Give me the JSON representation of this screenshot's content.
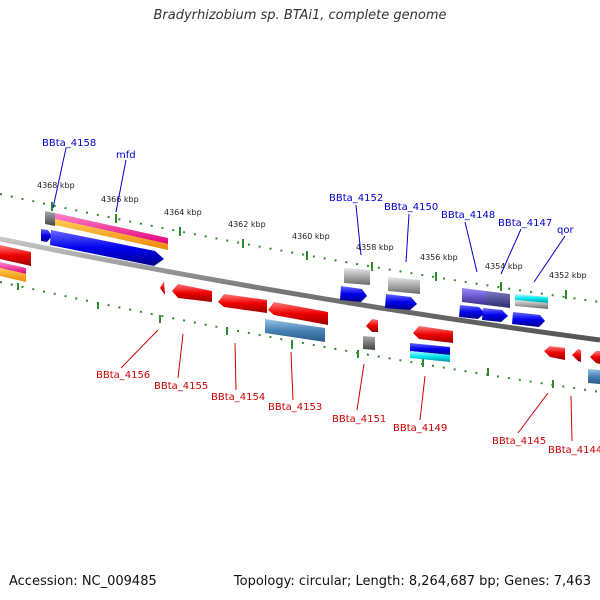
{
  "title": "Bradyrhizobium sp. BTAi1, complete genome",
  "footer": {
    "accession": "Accession: NC_009485",
    "stats": "Topology: circular; Length: 8,264,687 bp; Genes: 7,463"
  },
  "colors": {
    "forward_label": "#0000cc",
    "reverse_label": "#cc0000",
    "backbone": "#8a8a8a",
    "tick": "#2e8b2e"
  },
  "kbp_labels": [
    "4368 kbp",
    "4366 kbp",
    "4364 kbp",
    "4362 kbp",
    "4360 kbp",
    "4358 kbp",
    "4356 kbp",
    "4354 kbp",
    "4352 kbp"
  ],
  "forward_genes": [
    "BBta_4158",
    "mfd",
    "BBta_4152",
    "BBta_4150",
    "BBta_4148",
    "BBta_4147",
    "qor"
  ],
  "reverse_genes": [
    "BBta_4156",
    "BBta_4155",
    "BBta_4154",
    "BBta_4153",
    "BBta_4151",
    "BBta_4149",
    "BBta_4145",
    "BBta_4144"
  ]
}
